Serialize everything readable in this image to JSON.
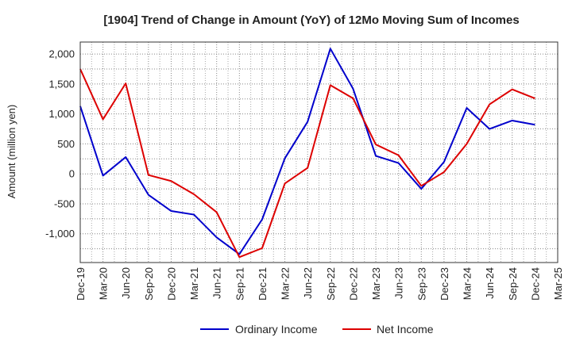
{
  "chart_data": {
    "type": "line",
    "title": "[1904]  Trend of Change in Amount (YoY) of 12Mo Moving Sum of Incomes",
    "ylabel": "Amount (million yen)",
    "xlabel": "",
    "ylim": [
      -1480,
      2200
    ],
    "yticks": [
      -1000,
      -500,
      0,
      500,
      1000,
      1500,
      2000
    ],
    "ytick_labels": [
      "-1,000",
      "-500",
      "0",
      "500",
      "1,000",
      "1,500",
      "2,000"
    ],
    "categories": [
      "Dec-19",
      "Mar-20",
      "Jun-20",
      "Sep-20",
      "Dec-20",
      "Mar-21",
      "Jun-21",
      "Sep-21",
      "Dec-21",
      "Mar-22",
      "Jun-22",
      "Sep-22",
      "Dec-22",
      "Mar-23",
      "Jun-23",
      "Sep-23",
      "Dec-23",
      "Mar-24",
      "Jun-24",
      "Sep-24",
      "Dec-24",
      "Mar-25"
    ],
    "series": [
      {
        "name": "Ordinary Income",
        "color": "#0000cc",
        "values": [
          1130,
          -30,
          280,
          -350,
          -620,
          -680,
          -1060,
          -1340,
          -760,
          260,
          870,
          2090,
          1420,
          300,
          180,
          -250,
          200,
          1100,
          750,
          890,
          820,
          null
        ]
      },
      {
        "name": "Net Income",
        "color": "#dd0000",
        "values": [
          1750,
          910,
          1510,
          -20,
          -120,
          -340,
          -640,
          -1390,
          -1240,
          -160,
          100,
          1480,
          1260,
          490,
          310,
          -200,
          30,
          500,
          1160,
          1410,
          1260,
          null
        ]
      }
    ],
    "legend_position": "bottom-center",
    "grid": true
  }
}
